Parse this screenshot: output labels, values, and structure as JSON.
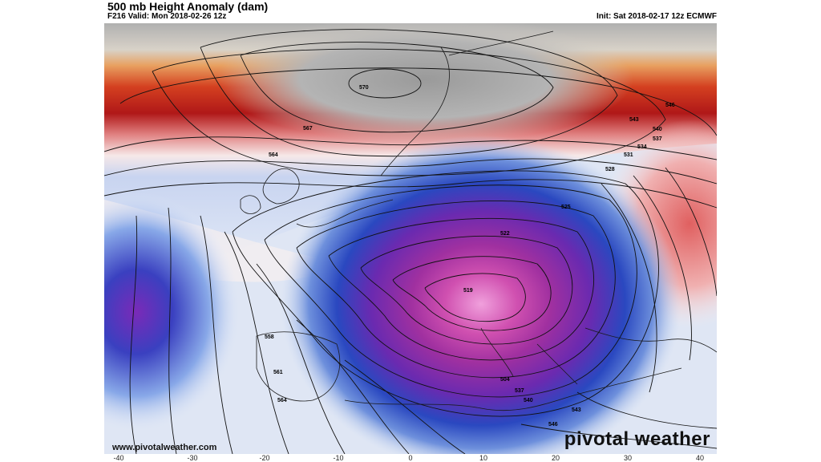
{
  "header": {
    "title": "500 mb Height Anomaly (dam)",
    "valid": "F216 Valid: Mon 2018-02-26 12z",
    "init": "Init: Sat 2018-02-17 12z ECMWF"
  },
  "footer": {
    "website": "www.pivotalweather.com",
    "brand": "pivotal weather"
  },
  "x_axis_ticks": [
    "-40",
    "-30",
    "-20",
    "-10",
    "0",
    "10",
    "20",
    "30",
    "40"
  ],
  "contour_labels": [
    "570",
    "567",
    "564",
    "546",
    "543",
    "540",
    "537",
    "534",
    "531",
    "528",
    "525",
    "522",
    "519",
    "504",
    "537",
    "540",
    "543",
    "546",
    "558",
    "561",
    "564"
  ],
  "colors": {
    "positive_anomaly": "#c01c1c",
    "negative_anomaly": "#2a3fb0",
    "strong_negative": "#8a2aa8",
    "extreme_negative": "#e070c0",
    "neutral_high": "#a9a9a9"
  }
}
